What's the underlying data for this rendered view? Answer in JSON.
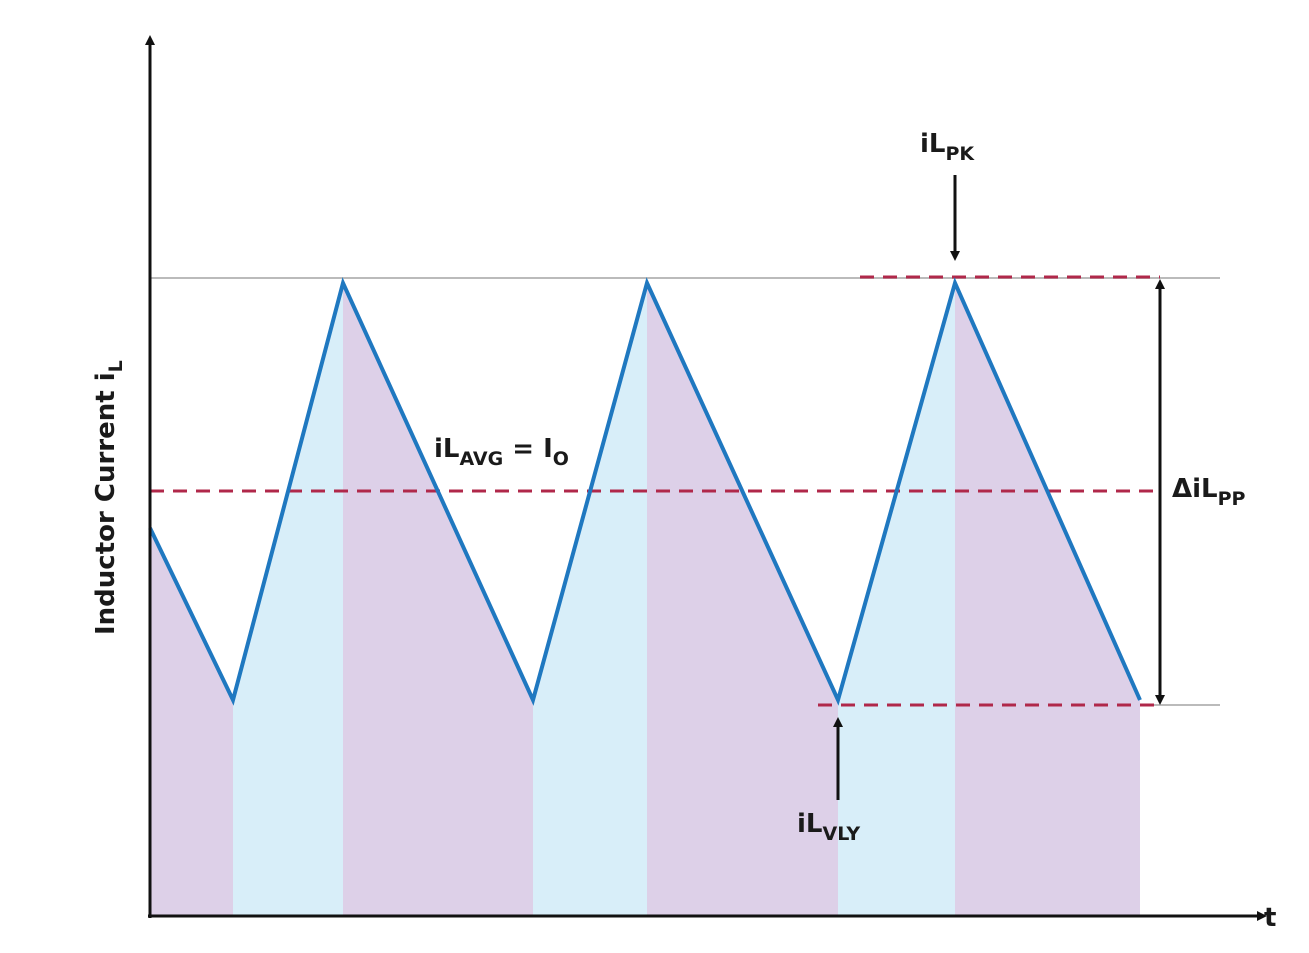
{
  "axis_label": {
    "text": "Inductor Current i",
    "sub": "L"
  },
  "time_label": "t",
  "peak_label": {
    "text": "iL",
    "sub": "PK"
  },
  "average_label": {
    "text": "iL",
    "sub": "AVG",
    "equals": " = I",
    "sub2": "O"
  },
  "ripple_label": {
    "text": "ΔiL",
    "sub": "PP"
  },
  "valley_label": {
    "text": "iL",
    "sub": "VLY"
  }
}
